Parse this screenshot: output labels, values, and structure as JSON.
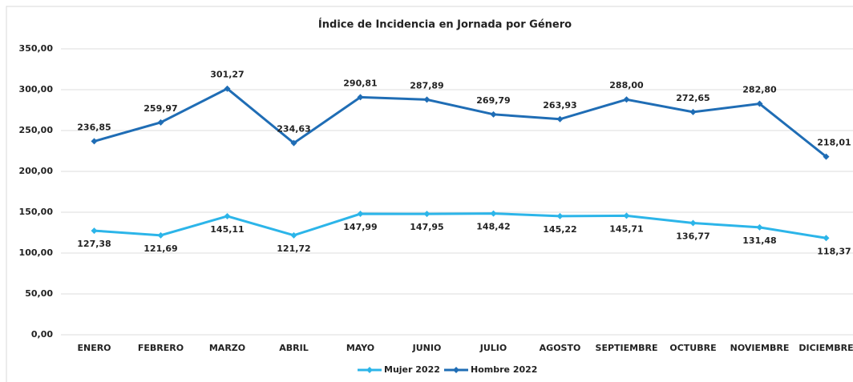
{
  "chart_data": {
    "type": "line",
    "title": "Índice de Incidencia en Jornada por Género",
    "categories": [
      "ENERO",
      "FEBRERO",
      "MARZO",
      "ABRIL",
      "MAYO",
      "JUNIO",
      "JULIO",
      "AGOSTO",
      "SEPTIEMBRE",
      "OCTUBRE",
      "NOVIEMBRE",
      "DICIEMBRE"
    ],
    "series": [
      {
        "name": "Mujer 2022",
        "color": "#2cb5e9",
        "values": [
          127.38,
          121.69,
          145.11,
          121.72,
          147.99,
          147.95,
          148.42,
          145.22,
          145.71,
          136.77,
          131.48,
          118.37
        ],
        "value_labels": [
          "127,38",
          "121,69",
          "145,11",
          "121,72",
          "147,99",
          "147,95",
          "148,42",
          "145,22",
          "145,71",
          "136,77",
          "131,48",
          "118,37"
        ]
      },
      {
        "name": "Hombre 2022",
        "color": "#1f6db5",
        "values": [
          236.85,
          259.97,
          301.27,
          234.63,
          290.81,
          287.89,
          269.79,
          263.93,
          288.0,
          272.65,
          282.8,
          218.01
        ],
        "value_labels": [
          "236,85",
          "259,97",
          "301,27",
          "234,63",
          "290,81",
          "287,89",
          "269,79",
          "263,93",
          "288,00",
          "272,65",
          "282,80",
          "218,01"
        ]
      }
    ],
    "ylim": [
      0,
      350
    ],
    "yticks": [
      {
        "value": 0,
        "label": "0,00"
      },
      {
        "value": 50,
        "label": "50,00"
      },
      {
        "value": 100,
        "label": "100,00"
      },
      {
        "value": 150,
        "label": "150,00"
      },
      {
        "value": 200,
        "label": "200,00"
      },
      {
        "value": 250,
        "label": "250,00"
      },
      {
        "value": 300,
        "label": "300,00"
      },
      {
        "value": 350,
        "label": "350,00"
      }
    ],
    "grid": true,
    "legend": "bottom"
  }
}
